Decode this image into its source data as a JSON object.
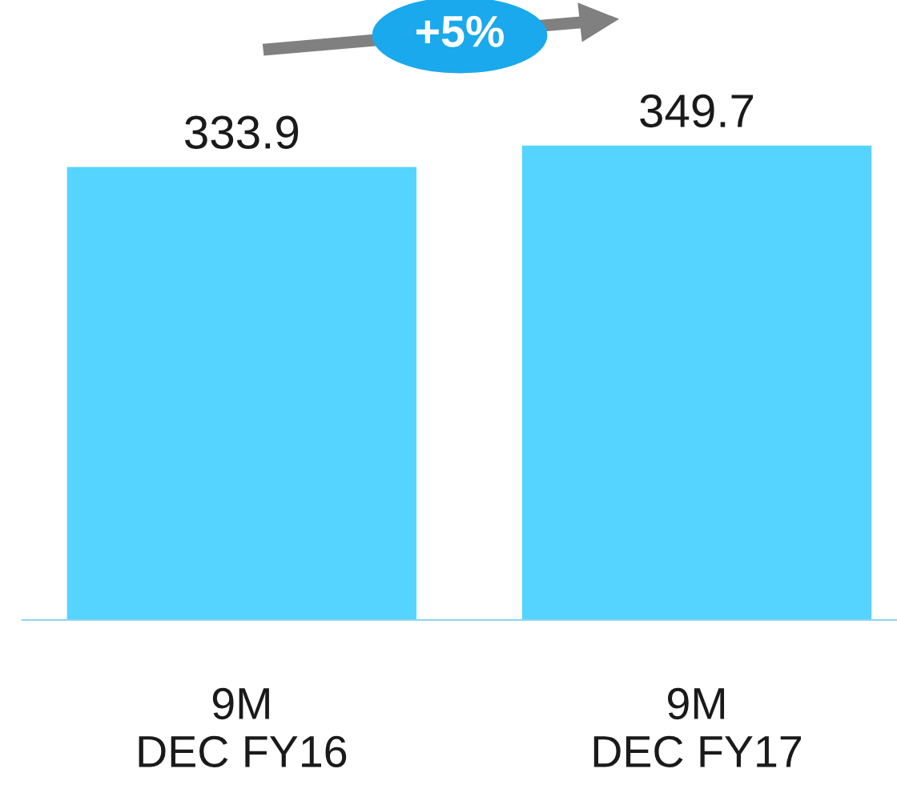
{
  "chart_data": {
    "type": "bar",
    "categories": [
      "9M\nDEC FY16",
      "9M\nDEC FY17"
    ],
    "values": [
      333.9,
      349.7
    ],
    "color": "#55d4ff",
    "data_labels": true,
    "legend": false,
    "annotations": [
      "+5%"
    ]
  }
}
